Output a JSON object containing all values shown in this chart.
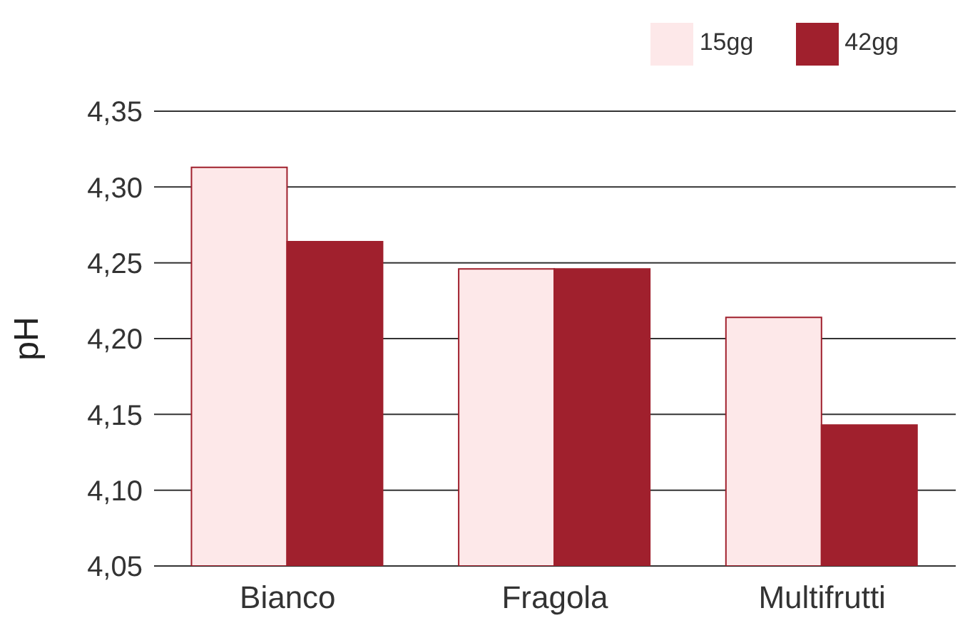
{
  "chart_data": {
    "type": "bar",
    "ylabel": "pH",
    "categories": [
      "Bianco",
      "Fragola",
      "Multifrutti"
    ],
    "series": [
      {
        "name": "15gg",
        "color": "#fde8e9",
        "values": [
          4.313,
          4.246,
          4.214
        ]
      },
      {
        "name": "42gg",
        "color": "#a0202d",
        "values": [
          4.264,
          4.246,
          4.143
        ]
      }
    ],
    "ylim": [
      4.05,
      4.35
    ],
    "yticks": [
      {
        "value": 4.05,
        "label": "4,05"
      },
      {
        "value": 4.1,
        "label": "4,10"
      },
      {
        "value": 4.15,
        "label": "4,15"
      },
      {
        "value": 4.2,
        "label": "4,20"
      },
      {
        "value": 4.25,
        "label": "4,25"
      },
      {
        "value": 4.3,
        "label": "4,30"
      },
      {
        "value": 4.35,
        "label": "4,35"
      }
    ],
    "grid": "y",
    "legend": "top right"
  }
}
